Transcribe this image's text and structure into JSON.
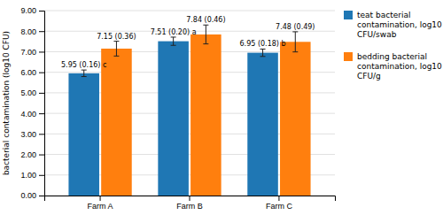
{
  "chart_data": {
    "type": "bar",
    "categories": [
      "Farm A",
      "Farm B",
      "Farm C"
    ],
    "ylabel": "bacterial contamination (log10 CFU)",
    "series": [
      {
        "name": "teat bacterial\ncontamination, log10\nCFU/swab",
        "values": [
          5.95,
          7.51,
          6.95
        ],
        "errors": [
          0.16,
          0.2,
          0.18
        ],
        "value_labels": [
          "5.95 (0.16) c",
          "7.51 (0.20) a",
          "6.95 (0.18) b"
        ]
      },
      {
        "name": "bedding bacterial\ncontamination, log10\nCFU/g",
        "values": [
          7.15,
          7.84,
          7.48
        ],
        "errors": [
          0.36,
          0.46,
          0.49
        ],
        "value_labels": [
          "7.15 (0.36)",
          "7.84 (0.46)",
          "7.48 (0.49)"
        ]
      }
    ],
    "ylim": [
      0.0,
      9.0
    ],
    "yticks": [
      {
        "value": 0.0,
        "label": "0.00"
      },
      {
        "value": 1.0,
        "label": "1.00"
      },
      {
        "value": 2.0,
        "label": "2.00"
      },
      {
        "value": 3.0,
        "label": "3.00"
      },
      {
        "value": 4.0,
        "label": "4.00"
      },
      {
        "value": 5.0,
        "label": "5.00"
      },
      {
        "value": 6.0,
        "label": "6.00"
      },
      {
        "value": 7.0,
        "label": "7.00"
      },
      {
        "value": 8.0,
        "label": "8.00"
      },
      {
        "value": 9.0,
        "label": "9.00"
      }
    ],
    "grid": true,
    "legend": "right",
    "data_labels": true
  }
}
